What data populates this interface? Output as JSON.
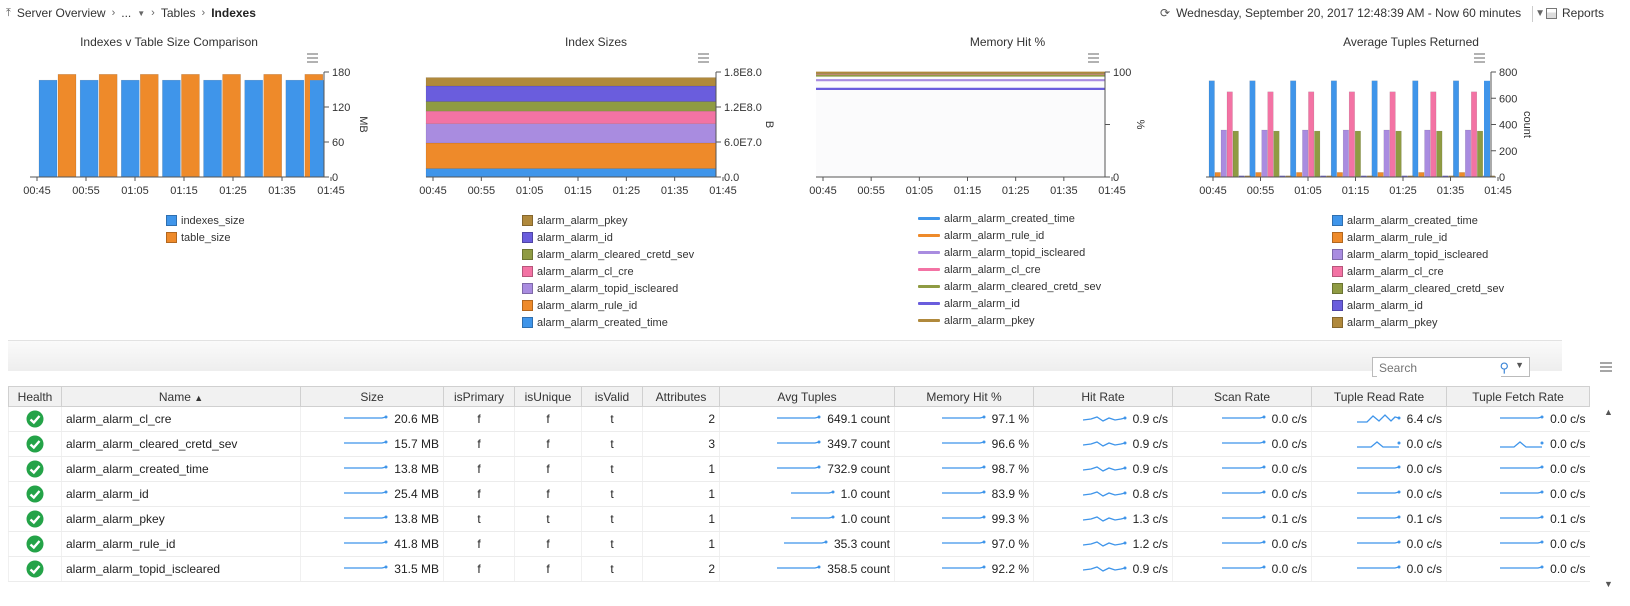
{
  "breadcrumb": {
    "items": [
      "Server Overview",
      "...",
      "Tables"
    ],
    "current": "Indexes"
  },
  "time_range": "Wednesday, September 20, 2017 12:48:39 AM - Now 60 minutes",
  "reports_label": "Reports",
  "search": {
    "placeholder": "Search"
  },
  "colors": {
    "blue": "#3f95ea",
    "orange": "#ee8a2a",
    "lightpurple": "#a98ce0",
    "pink": "#f373a4",
    "olive": "#8f9b43",
    "indigo": "#6a5ddd",
    "brown": "#b0893c"
  },
  "chart_data": [
    {
      "type": "bar",
      "title": "Indexes v Table Size Comparison",
      "ylabel": "MB",
      "ylim": [
        0,
        180
      ],
      "yticks": [
        "180",
        "120",
        "60",
        "0"
      ],
      "xticks": [
        "00:45",
        "00:55",
        "01:05",
        "01:15",
        "01:25",
        "01:35",
        "01:45"
      ],
      "series": [
        {
          "name": "indexes_size",
          "color": "#3f95ea",
          "values": [
            166,
            166,
            166,
            166,
            166,
            166,
            166
          ]
        },
        {
          "name": "table_size",
          "color": "#ee8a2a",
          "values": [
            176,
            176,
            176,
            176,
            176,
            176,
            176
          ]
        }
      ]
    },
    {
      "type": "area",
      "title": "Index Sizes",
      "ylabel": "B",
      "yticks": [
        "1.8E8.0",
        "1.2E8.0",
        "6.0E7.0",
        "0.0"
      ],
      "xticks": [
        "00:45",
        "00:55",
        "01:05",
        "01:15",
        "01:25",
        "01:35",
        "01:45"
      ],
      "series": [
        {
          "name": "alarm_alarm_pkey",
          "color": "#b0893c",
          "values": [
            14470000
          ]
        },
        {
          "name": "alarm_alarm_id",
          "color": "#6a5ddd",
          "values": [
            26630000
          ]
        },
        {
          "name": "alarm_alarm_cleared_cretd_sev",
          "color": "#8f9b43",
          "values": [
            16460000
          ]
        },
        {
          "name": "alarm_alarm_cl_cre",
          "color": "#f373a4",
          "values": [
            21600000
          ]
        },
        {
          "name": "alarm_alarm_topid_iscleared",
          "color": "#a98ce0",
          "values": [
            33030000
          ]
        },
        {
          "name": "alarm_alarm_rule_id",
          "color": "#ee8a2a",
          "values": [
            43830000
          ]
        },
        {
          "name": "alarm_alarm_created_time",
          "color": "#3f95ea",
          "values": [
            14470000
          ]
        }
      ]
    },
    {
      "type": "line",
      "title": "Memory Hit %",
      "ylabel": "%",
      "yticks": [
        "100",
        "",
        "0"
      ],
      "ylim": [
        0,
        100
      ],
      "xticks": [
        "00:45",
        "00:55",
        "01:05",
        "01:15",
        "01:25",
        "01:35",
        "01:45"
      ],
      "series": [
        {
          "name": "alarm_alarm_created_time",
          "color": "#3f95ea",
          "values": [
            98.7
          ]
        },
        {
          "name": "alarm_alarm_rule_id",
          "color": "#ee8a2a",
          "values": [
            97.0
          ]
        },
        {
          "name": "alarm_alarm_topid_iscleared",
          "color": "#a98ce0",
          "values": [
            92.2
          ]
        },
        {
          "name": "alarm_alarm_cl_cre",
          "color": "#f373a4",
          "values": [
            97.1
          ]
        },
        {
          "name": "alarm_alarm_cleared_cretd_sev",
          "color": "#8f9b43",
          "values": [
            96.6
          ]
        },
        {
          "name": "alarm_alarm_id",
          "color": "#6a5ddd",
          "values": [
            83.9
          ]
        },
        {
          "name": "alarm_alarm_pkey",
          "color": "#b0893c",
          "values": [
            99.3
          ]
        }
      ]
    },
    {
      "type": "bar",
      "title": "Average Tuples Returned",
      "ylabel": "count",
      "ylim": [
        0,
        800
      ],
      "yticks": [
        "800",
        "600",
        "400",
        "200",
        "0"
      ],
      "xticks": [
        "00:45",
        "00:55",
        "01:05",
        "01:15",
        "01:25",
        "01:35",
        "01:45"
      ],
      "series": [
        {
          "name": "alarm_alarm_created_time",
          "color": "#3f95ea",
          "values": [
            733,
            733,
            733,
            733,
            733,
            733,
            733
          ]
        },
        {
          "name": "alarm_alarm_rule_id",
          "color": "#ee8a2a",
          "values": [
            35,
            35,
            35,
            35,
            35,
            35,
            35
          ]
        },
        {
          "name": "alarm_alarm_topid_iscleared",
          "color": "#a98ce0",
          "values": [
            358,
            358,
            358,
            358,
            358,
            358,
            358
          ]
        },
        {
          "name": "alarm_alarm_cl_cre",
          "color": "#f373a4",
          "values": [
            649,
            649,
            649,
            649,
            649,
            649,
            649
          ]
        },
        {
          "name": "alarm_alarm_cleared_cretd_sev",
          "color": "#8f9b43",
          "values": [
            350,
            350,
            350,
            350,
            350,
            350,
            350
          ]
        },
        {
          "name": "alarm_alarm_id",
          "color": "#6a5ddd",
          "values": [
            1,
            1,
            1,
            1,
            1,
            1,
            1
          ]
        },
        {
          "name": "alarm_alarm_pkey",
          "color": "#b0893c",
          "values": [
            1,
            1,
            1,
            1,
            1,
            1,
            1
          ]
        }
      ]
    }
  ],
  "table": {
    "columns": [
      "Health",
      "Name",
      "Size",
      "isPrimary",
      "isUnique",
      "isValid",
      "Attributes",
      "Avg Tuples",
      "Memory Hit %",
      "Hit Rate",
      "Scan Rate",
      "Tuple Read Rate",
      "Tuple Fetch Rate"
    ],
    "sort_indicator": "▲",
    "rows": [
      {
        "name": "alarm_alarm_cl_cre",
        "size": "20.6 MB",
        "isPrimary": "f",
        "isUnique": "f",
        "isValid": "t",
        "attributes": "2",
        "avg_tuples": "649.1 count",
        "memory_hit": "97.1 %",
        "hit_rate": "0.9 c/s",
        "scan_rate": "0.0 c/s",
        "tuple_read": "6.4 c/s",
        "tuple_fetch": "0.0 c/s"
      },
      {
        "name": "alarm_alarm_cleared_cretd_sev",
        "size": "15.7 MB",
        "isPrimary": "f",
        "isUnique": "f",
        "isValid": "t",
        "attributes": "3",
        "avg_tuples": "349.7 count",
        "memory_hit": "96.6 %",
        "hit_rate": "0.9 c/s",
        "scan_rate": "0.0 c/s",
        "tuple_read": "0.0 c/s",
        "tuple_fetch": "0.0 c/s"
      },
      {
        "name": "alarm_alarm_created_time",
        "size": "13.8 MB",
        "isPrimary": "f",
        "isUnique": "f",
        "isValid": "t",
        "attributes": "1",
        "avg_tuples": "732.9 count",
        "memory_hit": "98.7 %",
        "hit_rate": "0.9 c/s",
        "scan_rate": "0.0 c/s",
        "tuple_read": "0.0 c/s",
        "tuple_fetch": "0.0 c/s"
      },
      {
        "name": "alarm_alarm_id",
        "size": "25.4 MB",
        "isPrimary": "f",
        "isUnique": "f",
        "isValid": "t",
        "attributes": "1",
        "avg_tuples": "1.0 count",
        "memory_hit": "83.9 %",
        "hit_rate": "0.8 c/s",
        "scan_rate": "0.0 c/s",
        "tuple_read": "0.0 c/s",
        "tuple_fetch": "0.0 c/s"
      },
      {
        "name": "alarm_alarm_pkey",
        "size": "13.8 MB",
        "isPrimary": "t",
        "isUnique": "t",
        "isValid": "t",
        "attributes": "1",
        "avg_tuples": "1.0 count",
        "memory_hit": "99.3 %",
        "hit_rate": "1.3 c/s",
        "scan_rate": "0.1 c/s",
        "tuple_read": "0.1 c/s",
        "tuple_fetch": "0.1 c/s"
      },
      {
        "name": "alarm_alarm_rule_id",
        "size": "41.8 MB",
        "isPrimary": "f",
        "isUnique": "f",
        "isValid": "t",
        "attributes": "1",
        "avg_tuples": "35.3 count",
        "memory_hit": "97.0 %",
        "hit_rate": "1.2 c/s",
        "scan_rate": "0.0 c/s",
        "tuple_read": "0.0 c/s",
        "tuple_fetch": "0.0 c/s"
      },
      {
        "name": "alarm_alarm_topid_iscleared",
        "size": "31.5 MB",
        "isPrimary": "f",
        "isUnique": "f",
        "isValid": "t",
        "attributes": "2",
        "avg_tuples": "358.5 count",
        "memory_hit": "92.2 %",
        "hit_rate": "0.9 c/s",
        "scan_rate": "0.0 c/s",
        "tuple_read": "0.0 c/s",
        "tuple_fetch": "0.0 c/s"
      }
    ]
  }
}
